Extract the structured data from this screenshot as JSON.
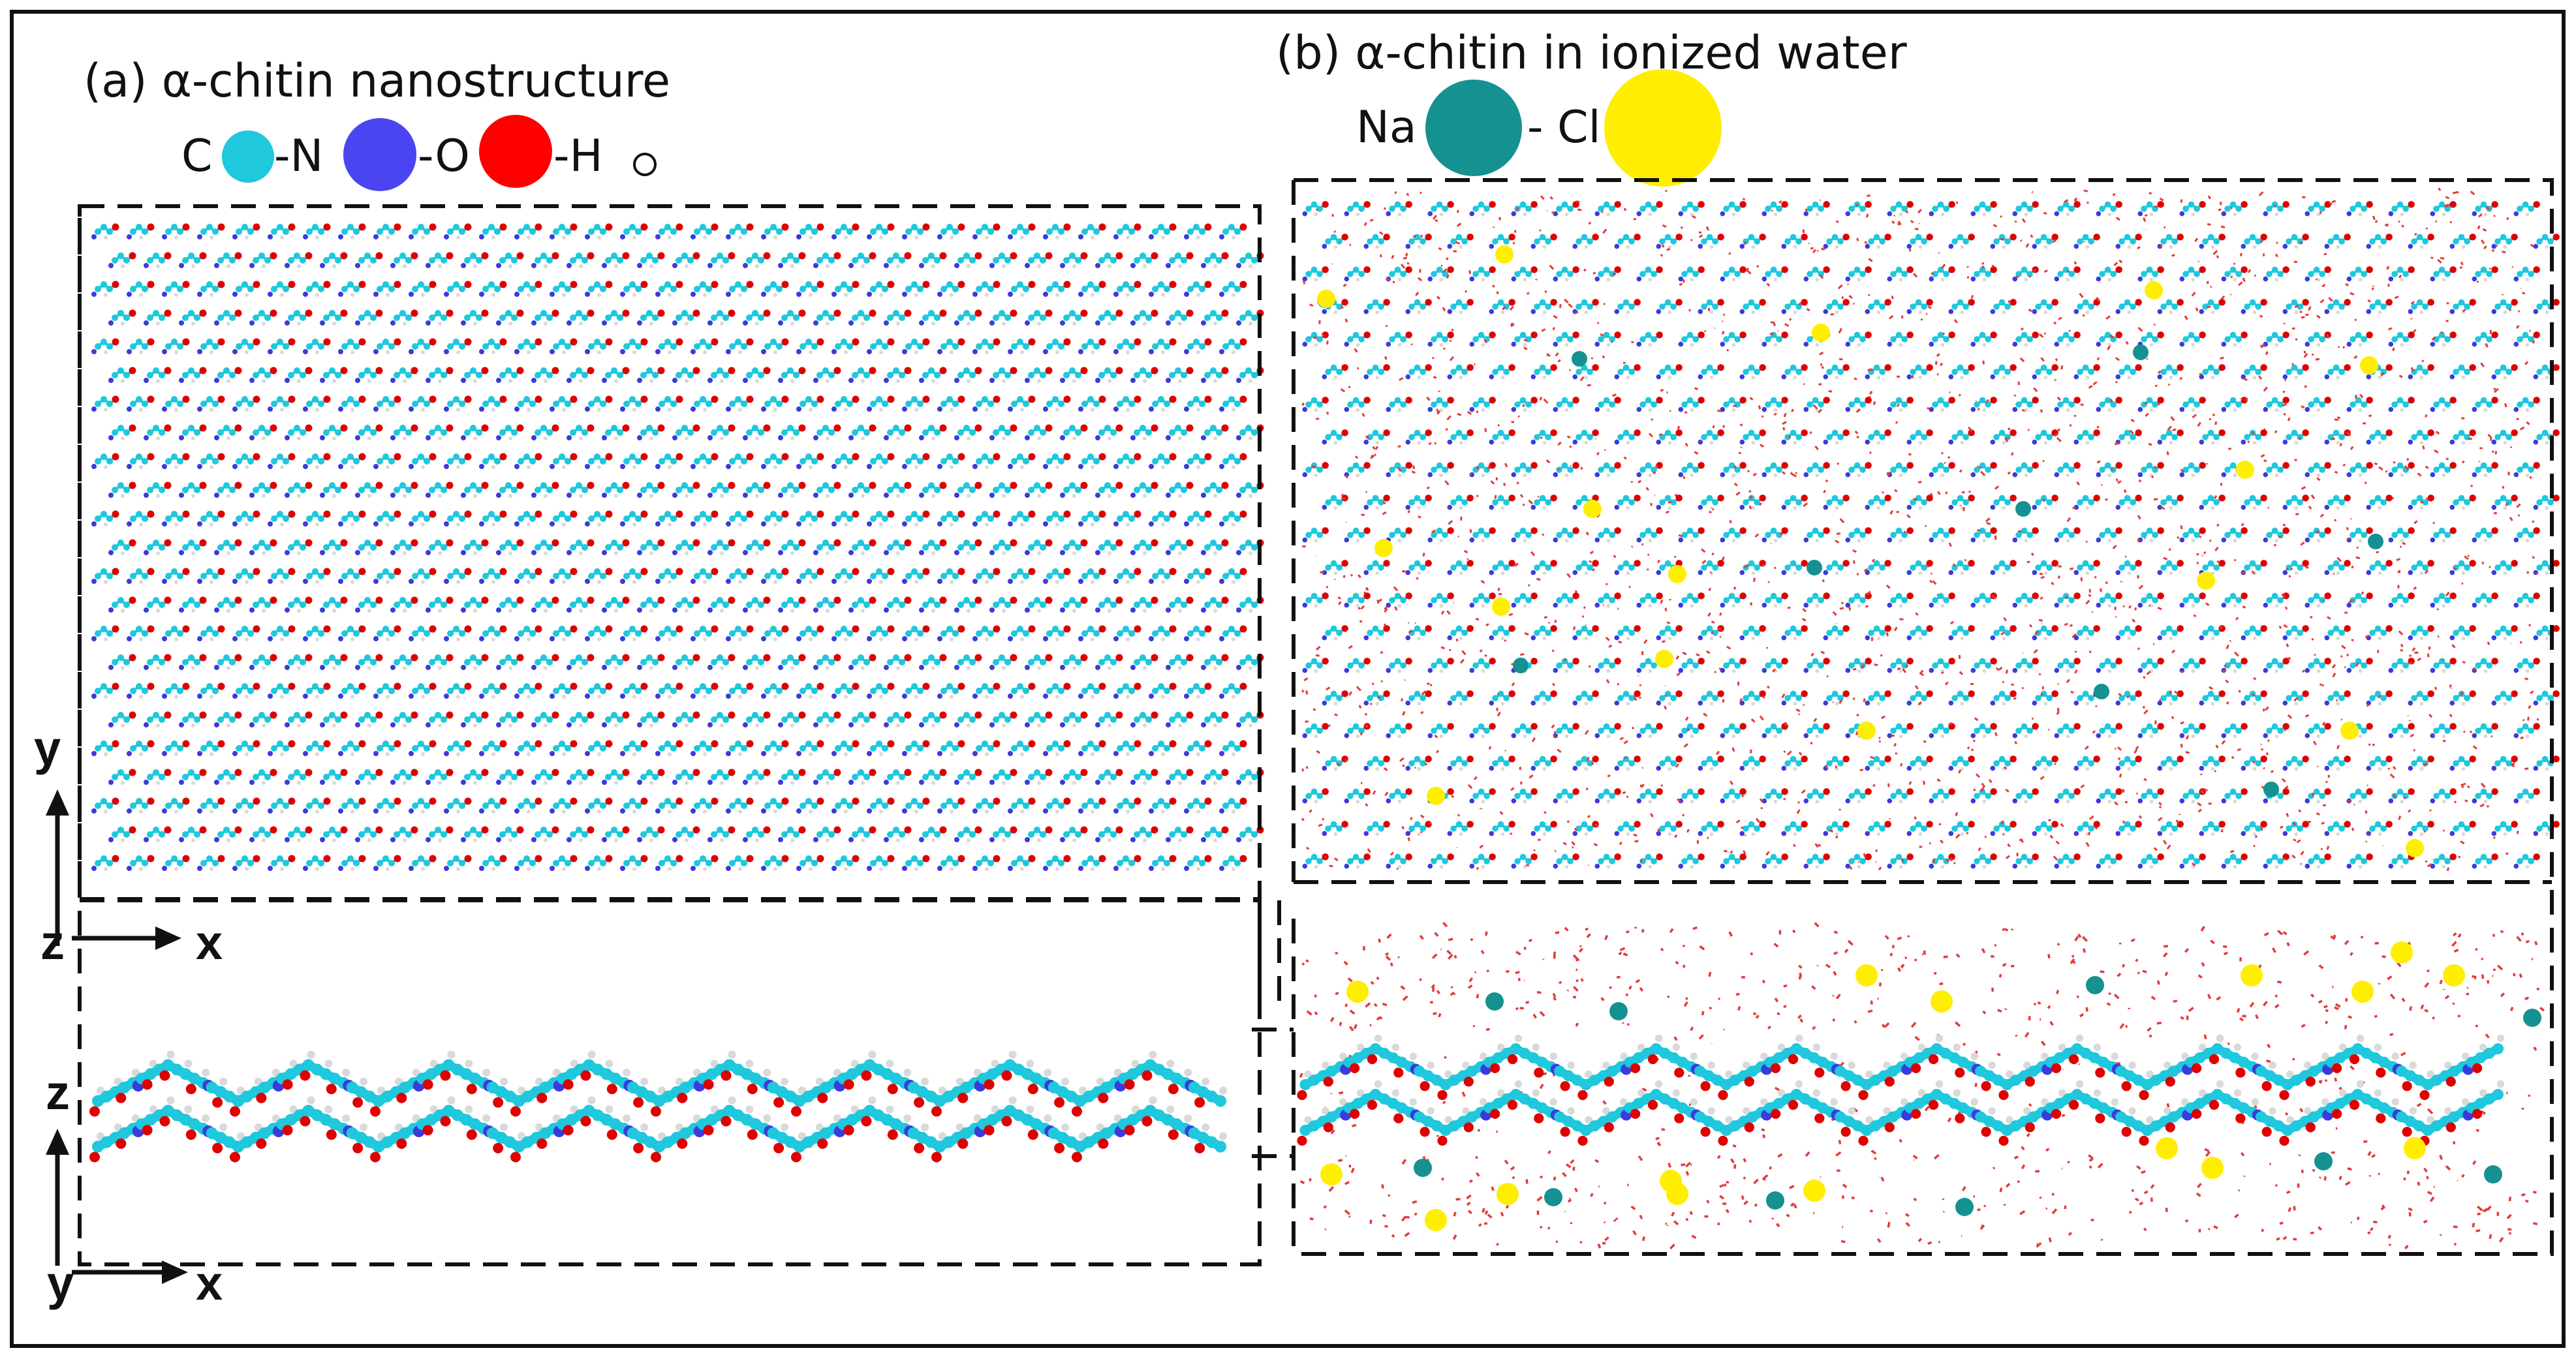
{
  "panel_a": {
    "title": "(a)  α-chitin nanostructure",
    "legend": [
      {
        "element": "C",
        "text": "C",
        "color": "#1fc8dc"
      },
      {
        "element": "N",
        "text": "-N",
        "color": "#4a45f0"
      },
      {
        "element": "O",
        "text": "-O",
        "color": "#ff0000"
      },
      {
        "element": "H",
        "text": "-H",
        "color": "#ffffff"
      }
    ],
    "top_axes": {
      "vertical": "y",
      "horizontal": "x",
      "origin": "z"
    },
    "side_axes": {
      "vertical": "z",
      "horizontal": "x",
      "origin": "y"
    }
  },
  "panel_b": {
    "title": "(b) α-chitin in ionized water",
    "legend": [
      {
        "element": "Na",
        "text": "Na",
        "color": "#159191"
      },
      {
        "element": "Cl",
        "text": "- Cl",
        "color": "#ffee00"
      }
    ]
  },
  "colors": {
    "carbon": "#1fc8dc",
    "nitrogen": "#3b3bdc",
    "oxygen": "#e00000",
    "hydrogen": "#d9d9d9",
    "sodium": "#159191",
    "chlorine": "#ffee00",
    "water": "#e33b3b",
    "frame": "#111111"
  }
}
